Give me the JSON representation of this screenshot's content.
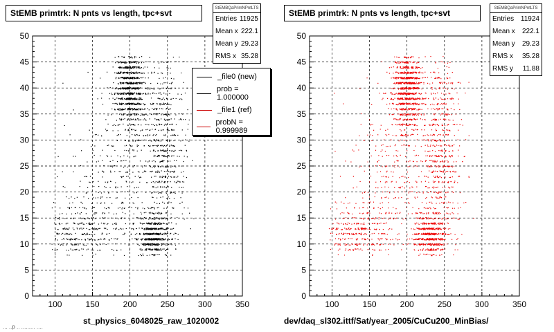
{
  "panels": [
    {
      "title": "StEMB primtrk: N pnts vs length, tpc+svt",
      "caption": "st_physics_6048025_raw_1020002",
      "stats": {
        "header": "StEMBQaPrimNPntLTS",
        "rows": [
          {
            "label": "Entries",
            "value": "11925"
          },
          {
            "label": "Mean x",
            "value": "222.1"
          },
          {
            "label": "Mean y",
            "value": "29.23"
          },
          {
            "label": "RMS x",
            "value": "35.28"
          }
        ]
      },
      "legend": [
        {
          "label": "_file0 (new)",
          "color": "#000000"
        },
        {
          "label": "prob = 1.000000",
          "color": "#000000"
        },
        {
          "label": "_file1 (ref)",
          "color": "#cc0000"
        },
        {
          "label": "probN = 0.999989",
          "color": "#cc0000"
        }
      ]
    },
    {
      "title": "StEMB primtrk: N pnts vs length, tpc+svt",
      "caption": "dev/daq_sl302.ittf/Sat/year_2005/CuCu200_MinBias/",
      "stats": {
        "header": "StEMBQaPrimNPntLTS",
        "rows": [
          {
            "label": "Entries",
            "value": "11924"
          },
          {
            "label": "Mean x",
            "value": "222.1"
          },
          {
            "label": "Mean y",
            "value": "29.23"
          },
          {
            "label": "RMS x",
            "value": "35.28"
          },
          {
            "label": "RMS y",
            "value": "11.88"
          }
        ]
      }
    }
  ],
  "footer": "... ..p .. ......... ....",
  "chart_data": [
    {
      "type": "scatter",
      "title": "StEMB primtrk: N pnts vs length, tpc+svt",
      "xlabel": "st_physics_6048025_raw_1020002",
      "ylabel": "",
      "xlim": [
        70,
        350
      ],
      "ylim": [
        0,
        50
      ],
      "xticks": [
        100,
        150,
        200,
        250,
        300,
        350
      ],
      "yticks": [
        0,
        5,
        10,
        15,
        20,
        25,
        30,
        35,
        40,
        45,
        50
      ],
      "grid": true,
      "color": "#000000",
      "clusters": [
        {
          "x": 200,
          "y": 40,
          "sx": 10,
          "sy": 4,
          "weight": 0.34
        },
        {
          "x": 230,
          "y": 11.5,
          "sx": 10,
          "sy": 2,
          "weight": 0.18
        },
        {
          "x": 245,
          "y": 28,
          "sx": 14,
          "sy": 11,
          "weight": 0.22
        },
        {
          "x": 190,
          "y": 22,
          "sx": 35,
          "sy": 9,
          "weight": 0.14
        },
        {
          "x": 130,
          "y": 12,
          "sx": 25,
          "sy": 3,
          "weight": 0.12
        }
      ],
      "xrange_data": [
        95,
        295
      ],
      "yrange_data": [
        8,
        46
      ]
    },
    {
      "type": "scatter",
      "title": "StEMB primtrk: N pnts vs length, tpc+svt",
      "xlabel": "dev/daq_sl302.ittf/Sat/year_2005/CuCu200_MinBias/",
      "ylabel": "",
      "xlim": [
        70,
        350
      ],
      "ylim": [
        0,
        50
      ],
      "xticks": [
        100,
        150,
        200,
        250,
        300,
        350
      ],
      "yticks": [
        0,
        5,
        10,
        15,
        20,
        25,
        30,
        35,
        40,
        45,
        50
      ],
      "grid": true,
      "color": "#ee0000",
      "clusters": [
        {
          "x": 200,
          "y": 40,
          "sx": 10,
          "sy": 4,
          "weight": 0.34
        },
        {
          "x": 230,
          "y": 11.5,
          "sx": 10,
          "sy": 2,
          "weight": 0.18
        },
        {
          "x": 245,
          "y": 28,
          "sx": 14,
          "sy": 11,
          "weight": 0.22
        },
        {
          "x": 190,
          "y": 22,
          "sx": 35,
          "sy": 9,
          "weight": 0.14
        },
        {
          "x": 130,
          "y": 12,
          "sx": 25,
          "sy": 3,
          "weight": 0.12
        }
      ],
      "xrange_data": [
        95,
        295
      ],
      "yrange_data": [
        8,
        46
      ]
    }
  ]
}
